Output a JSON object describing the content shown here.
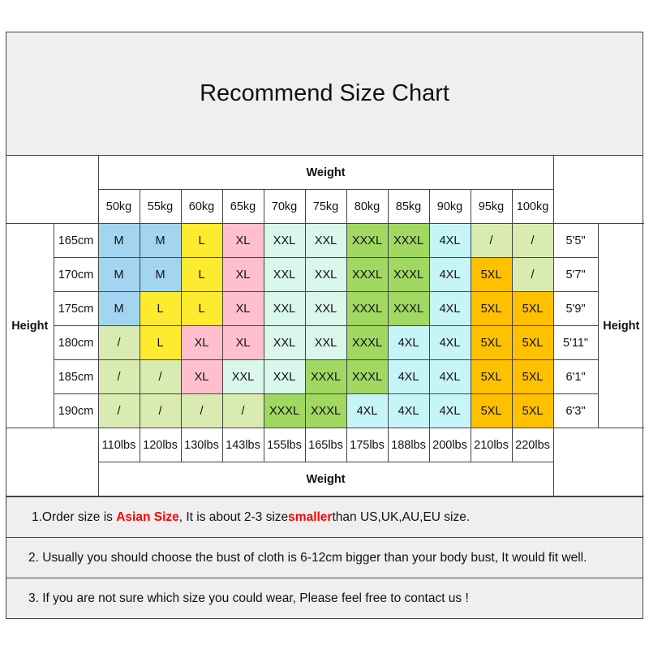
{
  "title": "Recommend Size Chart",
  "weight_label": "Weight",
  "height_label": "Height",
  "kg": [
    "50kg",
    "55kg",
    "60kg",
    "65kg",
    "70kg",
    "75kg",
    "80kg",
    "85kg",
    "90kg",
    "95kg",
    "100kg"
  ],
  "lbs": [
    "110lbs",
    "120lbs",
    "130lbs",
    "143lbs",
    "155lbs",
    "165lbs",
    "175lbs",
    "188lbs",
    "200lbs",
    "210lbs",
    "220lbs"
  ],
  "rows": [
    {
      "cm": "165cm",
      "ft": "5'5\"",
      "sizes": [
        "M",
        "M",
        "L",
        "XL",
        "XXL",
        "XXL",
        "XXXL",
        "XXXL",
        "4XL",
        "/",
        "/"
      ]
    },
    {
      "cm": "170cm",
      "ft": "5'7\"",
      "sizes": [
        "M",
        "M",
        "L",
        "XL",
        "XXL",
        "XXL",
        "XXXL",
        "XXXL",
        "4XL",
        "5XL",
        "/"
      ]
    },
    {
      "cm": "175cm",
      "ft": "5'9\"",
      "sizes": [
        "M",
        "L",
        "L",
        "XL",
        "XXL",
        "XXL",
        "XXXL",
        "XXXL",
        "4XL",
        "5XL",
        "5XL"
      ]
    },
    {
      "cm": "180cm",
      "ft": "5'11\"",
      "sizes": [
        "/",
        "L",
        "XL",
        "XL",
        "XXL",
        "XXL",
        "XXXL",
        "4XL",
        "4XL",
        "5XL",
        "5XL"
      ]
    },
    {
      "cm": "185cm",
      "ft": "6'1\"",
      "sizes": [
        "/",
        "/",
        "XL",
        "XXL",
        "XXL",
        "XXXL",
        "XXXL",
        "4XL",
        "4XL",
        "5XL",
        "5XL"
      ]
    },
    {
      "cm": "190cm",
      "ft": "6'3\"",
      "sizes": [
        "/",
        "/",
        "/",
        "/",
        "XXXL",
        "XXXL",
        "4XL",
        "4XL",
        "4XL",
        "5XL",
        "5XL"
      ]
    }
  ],
  "size_colors": {
    "M": "#a3d4f0",
    "L": "#fdeb2f",
    "XL": "#ffbfcf",
    "XXL": "#d9f7ea",
    "XXXL": "#a0d862",
    "4XL": "#c6f5f8",
    "5XL": "#ffc000",
    "/": "#d9ebb0"
  },
  "notes": {
    "n1_a": "1.Order size is ",
    "n1_b": "Asian Size",
    ", It is about 2-3 size ": "",
    "n1_c": ", It is about 2-3 size ",
    "n1_d": "smaller",
    "n1_e": " than US,UK,AU,EU size.",
    "n2": "2. Usually you should choose the bust of cloth is 6-12cm bigger than your body bust, It would fit well.",
    "n3": "3. If you are not sure which size you could wear, Please feel free to contact us !"
  }
}
